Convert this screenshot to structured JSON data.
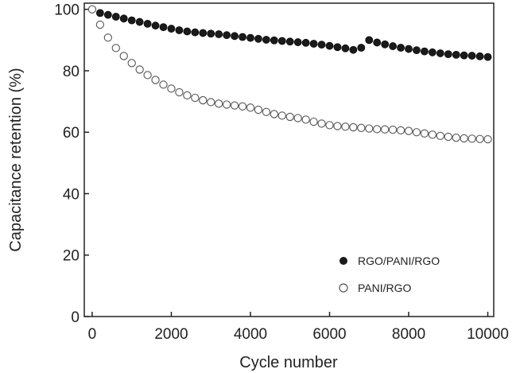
{
  "chart_data": {
    "type": "scatter",
    "xlabel": "Cycle number",
    "ylabel": "Capacitance retention (%)",
    "xlim": [
      -200,
      10150
    ],
    "ylim": [
      0,
      102
    ],
    "x_ticks": [
      0,
      2000,
      4000,
      6000,
      8000,
      10000
    ],
    "y_ticks": [
      0,
      20,
      40,
      60,
      80,
      100
    ],
    "x_tick_labels": [
      "0",
      "2000",
      "4000",
      "6000",
      "8000",
      "10000"
    ],
    "y_tick_labels": [
      "0",
      "20",
      "40",
      "60",
      "80",
      "100"
    ],
    "grid": false,
    "legend_position": "bottom-right",
    "series": [
      {
        "name": "RGO/PANI/RGO",
        "marker": "filled-circle",
        "color": "#1a1a1a",
        "x": [
          0,
          200,
          400,
          600,
          800,
          1000,
          1200,
          1400,
          1600,
          1800,
          2000,
          2200,
          2400,
          2600,
          2800,
          3000,
          3200,
          3400,
          3600,
          3800,
          4000,
          4200,
          4400,
          4600,
          4800,
          5000,
          5200,
          5400,
          5600,
          5800,
          6000,
          6200,
          6400,
          6600,
          6800,
          7000,
          7200,
          7400,
          7600,
          7800,
          8000,
          8200,
          8400,
          8600,
          8800,
          9000,
          9200,
          9400,
          9600,
          9800,
          10000
        ],
        "y": [
          100,
          98.8,
          98.2,
          97.6,
          97.0,
          96.4,
          95.9,
          95.3,
          94.7,
          94.2,
          93.7,
          93.2,
          92.8,
          92.5,
          92.3,
          92.1,
          91.9,
          91.6,
          91.3,
          91.0,
          90.7,
          90.4,
          90.1,
          89.9,
          89.7,
          89.5,
          89.3,
          89.1,
          88.8,
          88.5,
          88.1,
          87.7,
          87.3,
          86.8,
          87.5,
          90.0,
          89.2,
          88.6,
          88.0,
          87.5,
          87.1,
          86.7,
          86.3,
          86.0,
          85.7,
          85.4,
          85.2,
          85.0,
          84.9,
          84.7,
          84.5
        ]
      },
      {
        "name": "PANI/RGO",
        "marker": "open-circle",
        "color": "#555555",
        "x": [
          0,
          200,
          400,
          600,
          800,
          1000,
          1200,
          1400,
          1600,
          1800,
          2000,
          2200,
          2400,
          2600,
          2800,
          3000,
          3200,
          3400,
          3600,
          3800,
          4000,
          4200,
          4400,
          4600,
          4800,
          5000,
          5200,
          5400,
          5600,
          5800,
          6000,
          6200,
          6400,
          6600,
          6800,
          7000,
          7200,
          7400,
          7600,
          7800,
          8000,
          8200,
          8400,
          8600,
          8800,
          9000,
          9200,
          9400,
          9600,
          9800,
          10000
        ],
        "y": [
          100,
          95.0,
          90.8,
          87.4,
          84.8,
          82.5,
          80.4,
          78.6,
          77.0,
          75.5,
          74.2,
          73.0,
          72.0,
          71.2,
          70.4,
          69.8,
          69.3,
          69.0,
          68.7,
          68.4,
          68.0,
          67.3,
          66.6,
          65.9,
          65.4,
          65.0,
          64.6,
          64.1,
          63.4,
          62.8,
          62.3,
          62.0,
          61.8,
          61.6,
          61.4,
          61.2,
          61.0,
          60.9,
          60.8,
          60.6,
          60.4,
          60.0,
          59.6,
          59.2,
          58.8,
          58.5,
          58.2,
          58.0,
          57.9,
          57.8,
          57.7
        ]
      }
    ]
  }
}
